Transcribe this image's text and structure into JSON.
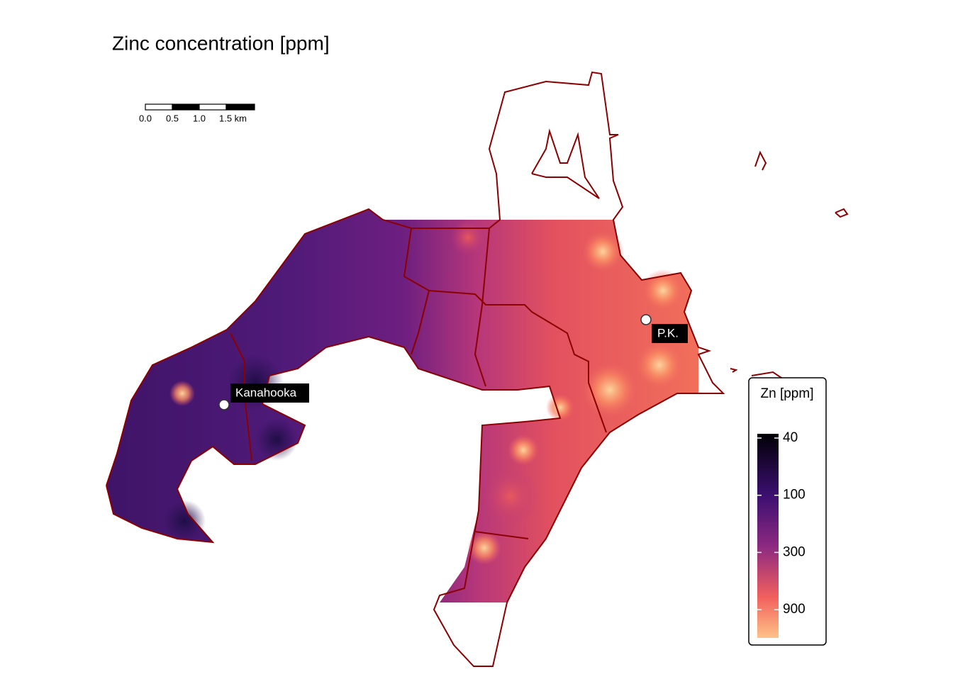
{
  "title": "Zinc concentration [ppm]",
  "scale_bar": {
    "labels": [
      "0.0",
      "0.5",
      "1.0",
      "1.5 km"
    ]
  },
  "places": [
    {
      "label": "Kanahooka"
    },
    {
      "label": "P.K."
    }
  ],
  "legend": {
    "title": "Zn [ppm]",
    "ticks": [
      40,
      100,
      300,
      900
    ]
  }
}
